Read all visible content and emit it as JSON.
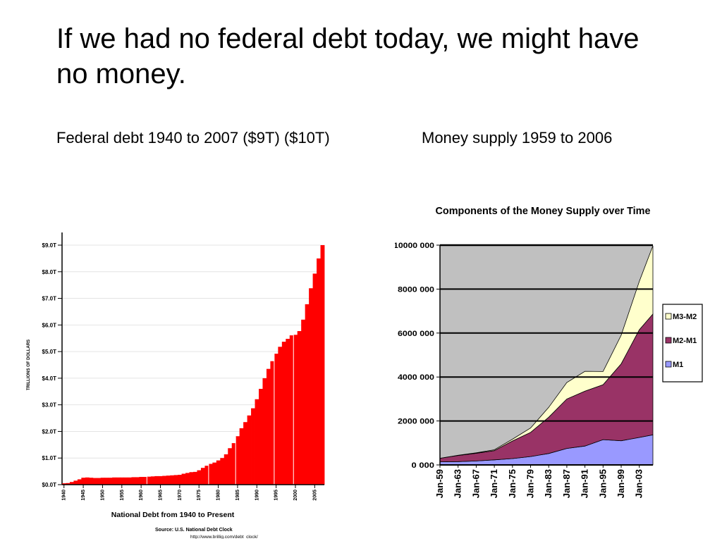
{
  "slide": {
    "title": "If we had no federal debt today, we might have no money.",
    "caption_left": "Federal debt 1940 to 2007 ($9T) ($10T)",
    "caption_right": "Money supply 1959 to 2006"
  },
  "chart_data": [
    {
      "type": "bar",
      "xlabel": "National Debt from 1940 to Present",
      "ylabel": "TRILLIONS OF DOLLARS",
      "source": "Source: U.S. National Debt Clock",
      "source_url": "http://www.brillig.com/debt_clock/",
      "y_ticks": [
        "$0.0T",
        "$1.0T",
        "$2.0T",
        "$3.0T",
        "$4.0T",
        "$5.0T",
        "$6.0T",
        "$7.0T",
        "$8.0T",
        "$9.0T"
      ],
      "y_tick_values": [
        0,
        1,
        2,
        3,
        4,
        5,
        6,
        7,
        8,
        9
      ],
      "x_ticks": [
        "1940",
        "1945",
        "1950",
        "1955",
        "1960",
        "1965",
        "1970",
        "1975",
        "1980",
        "1985",
        "1990",
        "1995",
        "2000",
        "2005"
      ],
      "ylim": [
        0,
        9
      ],
      "bar_color": "#ff0000",
      "categories": [
        "1940",
        "1941",
        "1942",
        "1943",
        "1944",
        "1945",
        "1946",
        "1947",
        "1948",
        "1949",
        "1950",
        "1951",
        "1952",
        "1953",
        "1954",
        "1955",
        "1956",
        "1957",
        "1958",
        "1959",
        "1960",
        "1961",
        "1962",
        "1963",
        "1964",
        "1965",
        "1966",
        "1967",
        "1968",
        "1969",
        "1970",
        "1971",
        "1972",
        "1973",
        "1974",
        "1975",
        "1976",
        "1977",
        "1978",
        "1979",
        "1980",
        "1981",
        "1982",
        "1983",
        "1984",
        "1985",
        "1986",
        "1987",
        "1988",
        "1989",
        "1990",
        "1991",
        "1992",
        "1993",
        "1994",
        "1995",
        "1996",
        "1997",
        "1998",
        "1999",
        "2000",
        "2001",
        "2002",
        "2003",
        "2004",
        "2005",
        "2006",
        "2007"
      ],
      "values": [
        0.05,
        0.06,
        0.1,
        0.15,
        0.2,
        0.26,
        0.27,
        0.26,
        0.25,
        0.25,
        0.26,
        0.26,
        0.26,
        0.27,
        0.27,
        0.27,
        0.27,
        0.27,
        0.28,
        0.28,
        0.29,
        0.29,
        0.3,
        0.31,
        0.32,
        0.32,
        0.33,
        0.34,
        0.35,
        0.36,
        0.37,
        0.41,
        0.44,
        0.47,
        0.48,
        0.54,
        0.63,
        0.71,
        0.78,
        0.83,
        0.91,
        1.0,
        1.14,
        1.37,
        1.56,
        1.82,
        2.12,
        2.35,
        2.6,
        2.87,
        3.21,
        3.6,
        4.0,
        4.35,
        4.64,
        4.92,
        5.18,
        5.37,
        5.48,
        5.61,
        5.63,
        5.77,
        6.2,
        6.78,
        7.38,
        7.93,
        8.5,
        9.0
      ]
    },
    {
      "type": "area",
      "title": "Components of the Money Supply over Time",
      "y_ticks": [
        "0 000",
        "2000 000",
        "4000 000",
        "6000 000",
        "8000 000",
        "10000 000"
      ],
      "y_tick_values": [
        0,
        2000000,
        4000000,
        6000000,
        8000000,
        10000000
      ],
      "ylim": [
        0,
        10000000
      ],
      "grid": true,
      "legend_position": "right",
      "x_ticks": [
        "Jan-59",
        "Jan-63",
        "Jan-67",
        "Jan-71",
        "Jan-75",
        "Jan-79",
        "Jan-83",
        "Jan-87",
        "Jan-91",
        "Jan-95",
        "Jan-99",
        "Jan-03"
      ],
      "x": [
        1959,
        1963,
        1967,
        1971,
        1975,
        1979,
        1983,
        1987,
        1991,
        1995,
        1999,
        2003,
        2006
      ],
      "series": [
        {
          "name": "M1",
          "color": "#9999ff",
          "values": [
            140000,
            150000,
            180000,
            230000,
            290000,
            380000,
            520000,
            750000,
            860000,
            1150000,
            1100000,
            1250000,
            1370000
          ]
        },
        {
          "name": "M2-M1",
          "color": "#993366",
          "values": [
            160000,
            280000,
            350000,
            420000,
            800000,
            1100000,
            1650000,
            2250000,
            2500000,
            2500000,
            3500000,
            4900000,
            5500000
          ]
        },
        {
          "name": "M3-M2",
          "color": "#ffffcc",
          "values": [
            0,
            10000,
            20000,
            40000,
            80000,
            200000,
            450000,
            750000,
            900000,
            600000,
            1300000,
            2200000,
            3100000
          ]
        }
      ]
    }
  ]
}
